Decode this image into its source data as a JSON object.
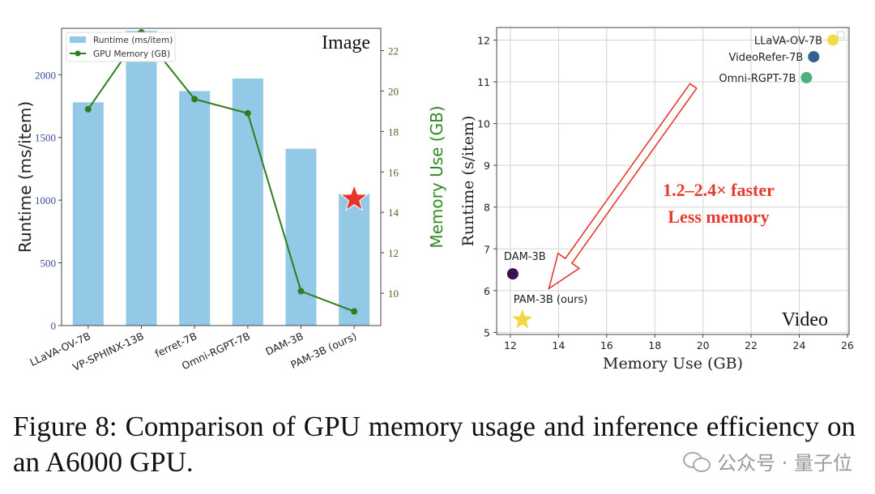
{
  "chart_data": [
    {
      "type": "bar",
      "corner_label": "Image",
      "categories": [
        "LLaVA-OV-7B",
        "VP-SPHINX-13B",
        "ferret-7B",
        "Omni-RGPT-7B",
        "DAM-3B",
        "PAM-3B (ours)"
      ],
      "series": [
        {
          "name": "Runtime (ms/item)",
          "type": "bar",
          "axis": "left",
          "values": [
            1780,
            2350,
            1870,
            1970,
            1410,
            1050
          ],
          "color": "#93c8e6"
        },
        {
          "name": "GPU Memory (GB)",
          "type": "line",
          "axis": "right",
          "values": [
            19.1,
            22.9,
            19.6,
            18.9,
            10.1,
            9.1
          ],
          "color": "#2e7d1f"
        }
      ],
      "ylabel": "Runtime (ms/item)",
      "ylabel_right": "Memory Use (GB)",
      "ylim": [
        0,
        2370
      ],
      "ylim_right": [
        8.4,
        23.1
      ],
      "yticks": [
        0,
        500,
        1000,
        1500,
        2000
      ],
      "yticks_right": [
        10,
        12,
        14,
        16,
        18,
        20,
        22
      ],
      "ytick_color": "#3b4f9a",
      "ylabel_right_color": "#2e8b1f",
      "highlight_marker": {
        "category": "PAM-3B (ours)",
        "shape": "star",
        "color": "#e8332a",
        "value": 1010
      },
      "legend": "top-left",
      "grid": false
    },
    {
      "type": "scatter",
      "corner_label": "Video",
      "points": [
        {
          "label": "LLaVA-OV-7B",
          "x": 25.4,
          "y": 12.0,
          "color": "#f0dc4a",
          "marker": "circle"
        },
        {
          "label": "VideoRefer-7B",
          "x": 24.6,
          "y": 11.6,
          "color": "#35618f",
          "marker": "circle"
        },
        {
          "label": "Omni-RGPT-7B",
          "x": 24.3,
          "y": 11.1,
          "color": "#4fb179",
          "marker": "circle"
        },
        {
          "label": "DAM-3B",
          "x": 12.1,
          "y": 6.4,
          "color": "#3c0f4e",
          "marker": "circle"
        },
        {
          "label": "PAM-3B (ours)",
          "x": 12.5,
          "y": 5.3,
          "color": "#f2d646",
          "marker": "star"
        }
      ],
      "xlabel": "Memory Use (GB)",
      "ylabel": "Runtime (s/item)",
      "xlim": [
        11.43,
        26.07
      ],
      "ylim": [
        4.95,
        12.3
      ],
      "xticks": [
        12,
        14,
        16,
        18,
        20,
        22,
        24,
        26
      ],
      "yticks": [
        5,
        6,
        7,
        8,
        9,
        10,
        11,
        12
      ],
      "grid": true,
      "annotation": {
        "lines": [
          "1.2–2.4× faster",
          "Less memory"
        ],
        "color": "#e53a2e",
        "arrow_from": [
          19.6,
          10.9
        ],
        "arrow_to": [
          13.6,
          6.05
        ]
      }
    }
  ],
  "caption": "Figure 8: Comparison of GPU memory usage and inference efficiency on an A6000 GPU.",
  "watermark": "公众号 · 量子位"
}
